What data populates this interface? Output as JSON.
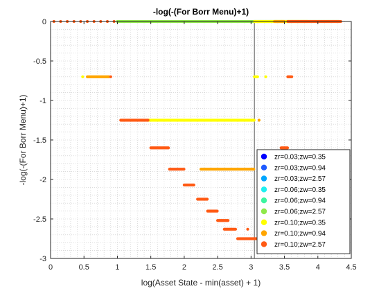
{
  "chart_data": {
    "type": "scatter",
    "title": "-log(-(For Borr Menu)+1)",
    "xlabel": "log(Asset State - min(asset) + 1)",
    "ylabel": "-log(-(For Borr Menu)+1)",
    "xlim": [
      0,
      4.5
    ],
    "ylim": [
      -3,
      0
    ],
    "xticks": [
      "0",
      "0.5",
      "1",
      "1.5",
      "2",
      "2.5",
      "3",
      "3.5",
      "4",
      "4.5"
    ],
    "xtick_values": [
      0,
      0.5,
      1,
      1.5,
      2,
      2.5,
      3,
      3.5,
      4,
      4.5
    ],
    "yticks": [
      "0",
      "-0.5",
      "-1",
      "-1.5",
      "-2",
      "-2.5",
      "-3"
    ],
    "ytick_values": [
      0,
      -0.5,
      -1,
      -1.5,
      -2,
      -2.5,
      -3
    ],
    "grid": "minor dotted",
    "legend_position": "bottom-right",
    "vertical_line_x": 3.05,
    "series": [
      {
        "name": "zr=0.03;zw=0.35",
        "color": "#0000ff",
        "segments": [],
        "points": []
      },
      {
        "name": "zr=0.03;zw=0.94",
        "color": "#1f5bff",
        "segments": [],
        "points": []
      },
      {
        "name": "zr=0.03;zw=2.57",
        "color": "#00a6ff",
        "segments": [],
        "points": []
      },
      {
        "name": "zr=0.06;zw=0.35",
        "color": "#1ff0f0",
        "segments": [],
        "points": []
      },
      {
        "name": "zr=0.06;zw=0.94",
        "color": "#3cf5a0",
        "segments": [],
        "points": []
      },
      {
        "name": "zr=0.06;zw=2.57",
        "color": "#8fe84a",
        "segments": [
          [
            1.0,
            4.32,
            0
          ]
        ],
        "points": []
      },
      {
        "name": "zr=0.10;zw=0.35",
        "color": "#ffff00",
        "segments": [
          [
            1.45,
            3.05,
            -1.25
          ],
          [
            3.05,
            3.1,
            -0.7
          ],
          [
            3.05,
            3.85,
            0
          ]
        ],
        "points": [
          [
            0.48,
            -0.7
          ],
          [
            3.22,
            -0.7
          ]
        ]
      },
      {
        "name": "zr=0.10;zw=0.94",
        "color": "#ffa500",
        "segments": [
          [
            0.55,
            0.88,
            -0.7
          ],
          [
            2.25,
            3.05,
            -1.87
          ],
          [
            3.35,
            3.5,
            0
          ]
        ],
        "points": [
          [
            3.12,
            -1.25
          ]
        ]
      },
      {
        "name": "zr=0.10;zw=2.57",
        "color": "#ff5a14",
        "segments": [
          [
            1.05,
            1.46,
            -1.25
          ],
          [
            1.5,
            1.77,
            -1.6
          ],
          [
            1.78,
            2.0,
            -1.87
          ],
          [
            2.0,
            2.15,
            -2.07
          ],
          [
            2.2,
            2.35,
            -2.25
          ],
          [
            2.35,
            2.5,
            -2.4
          ],
          [
            2.5,
            2.66,
            -2.52
          ],
          [
            2.6,
            2.77,
            -2.63
          ],
          [
            2.8,
            3.12,
            -2.75
          ],
          [
            3.55,
            4.35,
            0
          ],
          [
            3.55,
            3.62,
            -0.7
          ],
          [
            3.45,
            3.55,
            -1.6
          ]
        ],
        "points": [
          [
            0.05,
            0
          ],
          [
            0.15,
            0
          ],
          [
            0.25,
            0
          ],
          [
            0.35,
            0
          ],
          [
            0.45,
            0
          ],
          [
            0.55,
            0
          ],
          [
            0.65,
            0
          ],
          [
            0.75,
            0
          ],
          [
            0.85,
            0
          ],
          [
            0.95,
            0
          ],
          [
            0.9,
            -0.7
          ],
          [
            2.95,
            -2.63
          ]
        ]
      }
    ]
  }
}
